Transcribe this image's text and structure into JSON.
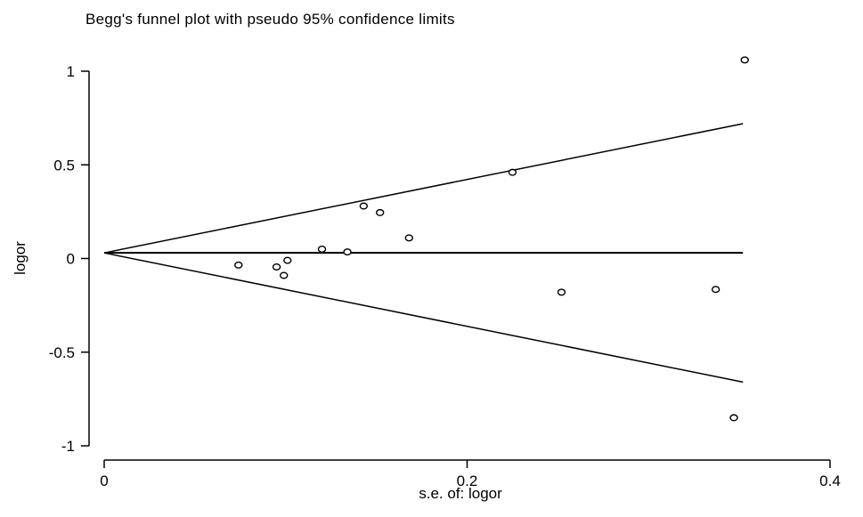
{
  "chart_data": {
    "type": "scatter",
    "title": "Begg's funnel plot with pseudo 95% confidence limits",
    "xlabel": "s.e. of: logor",
    "ylabel": "logor",
    "xlim": [
      0,
      0.4
    ],
    "ylim": [
      -1,
      1
    ],
    "x_ticks": [
      {
        "value": 0,
        "label": "0"
      },
      {
        "value": 0.2,
        "label": "0.2"
      },
      {
        "value": 0.4,
        "label": "0.4"
      }
    ],
    "y_ticks": [
      {
        "value": 1,
        "label": "1"
      },
      {
        "value": 0.5,
        "label": "0.5"
      },
      {
        "value": 0,
        "label": "0"
      },
      {
        "value": -0.5,
        "label": "-0.5"
      },
      {
        "value": -1,
        "label": "-1"
      }
    ],
    "grid": false,
    "pooled_estimate": 0.03,
    "se_max": 0.352,
    "points": [
      {
        "x": 0.074,
        "y": -0.035
      },
      {
        "x": 0.095,
        "y": -0.045
      },
      {
        "x": 0.099,
        "y": -0.09
      },
      {
        "x": 0.101,
        "y": -0.01
      },
      {
        "x": 0.12,
        "y": 0.05
      },
      {
        "x": 0.134,
        "y": 0.035
      },
      {
        "x": 0.143,
        "y": 0.28
      },
      {
        "x": 0.152,
        "y": 0.245
      },
      {
        "x": 0.168,
        "y": 0.11
      },
      {
        "x": 0.225,
        "y": 0.46
      },
      {
        "x": 0.252,
        "y": -0.18
      },
      {
        "x": 0.337,
        "y": -0.165
      },
      {
        "x": 0.347,
        "y": -0.85
      },
      {
        "x": 0.353,
        "y": 1.06
      }
    ]
  }
}
